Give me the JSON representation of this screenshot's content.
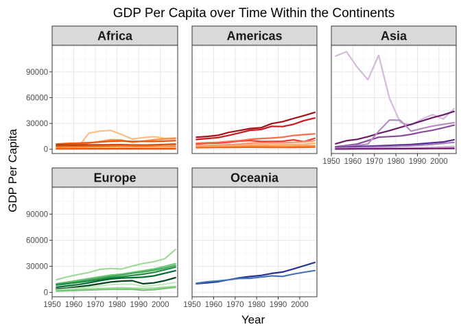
{
  "chart_data": {
    "type": "line",
    "title": "GDP Per Capita over Time Within the Continents",
    "xlabel": "Year",
    "ylabel": "GDP Per Capita",
    "xlim": [
      1950,
      2008
    ],
    "ylim": [
      -5000,
      121000
    ],
    "x_ticks": [
      1950,
      1960,
      1970,
      1980,
      1990,
      2000
    ],
    "y_ticks": [
      0,
      30000,
      60000,
      90000
    ],
    "x_tick_labels": [
      "1950",
      "1960",
      "1970",
      "1980",
      "1990",
      "2000"
    ],
    "y_tick_labels": [
      "0",
      "30000",
      "60000",
      "90000"
    ],
    "grid": true,
    "legend": "none",
    "x": [
      1952,
      1957,
      1962,
      1967,
      1972,
      1977,
      1982,
      1987,
      1992,
      1997,
      2002,
      2007
    ],
    "panels": [
      {
        "name": "Africa",
        "colors": [
          "#fdbe85",
          "#fd8d3c",
          "#e6550d",
          "#a63603",
          "#f16913",
          "#d94801"
        ],
        "series": [
          {
            "values": [
              2449,
              3014,
              2551,
              18772,
              21011,
              21951,
              17364,
              11864,
              13522,
              14723,
              12522,
              13206
            ]
          },
          {
            "values": [
              4725,
              5487,
              5768,
              7114,
              9000,
              11000,
              10800,
              8000,
              9500,
              11000,
              12000,
              12570
            ]
          },
          {
            "values": [
              6000,
              6800,
              7100,
              7600,
              8300,
              9200,
              9600,
              9000,
              9100,
              9000,
              9500,
              10000
            ]
          },
          {
            "values": [
              4700,
              4800,
              4900,
              5000,
              5100,
              5200,
              5300,
              5000,
              4900,
              5100,
              5500,
              6000
            ]
          },
          {
            "values": [
              3000,
              3200,
              3400,
              3700,
              4000,
              4300,
              4400,
              4300,
              4200,
              4400,
              4800,
              5200
            ]
          },
          {
            "values": [
              2000,
              2100,
              2200,
              2300,
              2500,
              2600,
              2600,
              2500,
              2400,
              2500,
              2700,
              3000
            ]
          },
          {
            "values": [
              1500,
              1600,
              1700,
              1800,
              2000,
              2100,
              2200,
              2100,
              2000,
              2100,
              2300,
              2500
            ]
          },
          {
            "values": [
              800,
              850,
              900,
              950,
              1000,
              1050,
              1050,
              1000,
              950,
              950,
              1000,
              1100
            ]
          },
          {
            "values": [
              400,
              420,
              450,
              480,
              500,
              520,
              500,
              480,
              450,
              430,
              440,
              470
            ]
          }
        ]
      },
      {
        "name": "Americas",
        "colors": [
          "#a50f15",
          "#cb181d",
          "#ef3b2c",
          "#fb6a4a",
          "#fc9272",
          "#fdae6b",
          "#fd8d3c",
          "#f16913"
        ],
        "series": [
          {
            "values": [
              13990,
              14847,
              16173,
              19530,
              21806,
              24073,
              25010,
              29884,
              32004,
              35767,
              39097,
              42952
            ]
          },
          {
            "values": [
              11367,
              12490,
              13462,
              16077,
              18971,
              22091,
              22899,
              26627,
              26343,
              28955,
              33329,
              36319
            ]
          },
          {
            "values": [
              5911,
              6857,
              7133,
              8053,
              9443,
              10079,
              8998,
              9140,
              9308,
              10967,
              8798,
              12779
            ]
          },
          {
            "values": [
              7000,
              7500,
              8000,
              9000,
              10000,
              11500,
              12500,
              13000,
              14000,
              16000,
              17000,
              18000
            ]
          },
          {
            "values": [
              4000,
              4300,
              4800,
              5300,
              6000,
              7000,
              7500,
              7200,
              7400,
              8000,
              8500,
              10000
            ]
          },
          {
            "values": [
              3000,
              3300,
              3600,
              4000,
              4500,
              5000,
              5300,
              5000,
              5200,
              5500,
              5800,
              7000
            ]
          },
          {
            "values": [
              2000,
              2200,
              2400,
              2600,
              2900,
              3300,
              3500,
              3200,
              3300,
              3500,
              3700,
              4200
            ]
          },
          {
            "values": [
              1800,
              1900,
              2000,
              2100,
              2200,
              2300,
              2200,
              2000,
              2000,
              2100,
              2200,
              2400
            ]
          }
        ]
      },
      {
        "name": "Asia",
        "colors": [
          "#d4b9da",
          "#6a1b6a",
          "#8c4a9c",
          "#b48cc0",
          "#54278f",
          "#9e7db8",
          "#c7a8cf"
        ],
        "series": [
          {
            "values": [
              108382,
              113523,
              95458,
              80895,
              109348,
              59265,
              31354,
              28118,
              34933,
              40301,
              35110,
              47307
            ]
          },
          {
            "values": [
              6300,
              9900,
              11500,
              14600,
              18400,
              21600,
              25400,
              29000,
              32800,
              36700,
              40000,
              44000
            ]
          },
          {
            "values": [
              3000,
              4300,
              6000,
              10000,
              14000,
              14700,
              15400,
              17300,
              20000,
              22000,
              25000,
              28000
            ]
          },
          {
            "values": [
              2500,
              3400,
              4500,
              6000,
              21000,
              34000,
              33700,
              21000,
              24000,
              27000,
              29000,
              31000
            ]
          },
          {
            "values": [
              2300,
              2700,
              3100,
              3500,
              4000,
              4500,
              5000,
              5500,
              6500,
              7500,
              8500,
              11000
            ]
          },
          {
            "values": [
              1500,
              1800,
              2000,
              2400,
              2800,
              3200,
              3700,
              4100,
              4800,
              5700,
              6800,
              8000
            ]
          },
          {
            "values": [
              700,
              800,
              900,
              1000,
              1100,
              1200,
              1300,
              1500,
              1800,
              2200,
              2700,
              3200
            ]
          },
          {
            "values": [
              500,
              600,
              700,
              800,
              900,
              1000,
              1100,
              1200,
              1300,
              1500,
              1700,
              2000
            ]
          },
          {
            "values": [
              300,
              350,
              400,
              450,
              500,
              550,
              600,
              650,
              700,
              800,
              900,
              1000
            ]
          }
        ]
      },
      {
        "name": "Europe",
        "colors": [
          "#a1d99b",
          "#74c476",
          "#41ab5d",
          "#238b45",
          "#006d2c",
          "#00441b",
          "#c7e9c0"
        ],
        "series": [
          {
            "values": [
              14700,
              17900,
              20500,
              22900,
              26500,
              27500,
              26800,
              30300,
              33300,
              35300,
              38600,
              49400
            ]
          },
          {
            "values": [
              10000,
              12000,
              14000,
              16000,
              18000,
              20000,
              21000,
              23000,
              25000,
              27000,
              30000,
              33000
            ]
          },
          {
            "values": [
              9500,
              11000,
              12500,
              14500,
              16500,
              18500,
              20000,
              22000,
              23500,
              25500,
              28000,
              31000
            ]
          },
          {
            "values": [
              8500,
              10000,
              11500,
              13000,
              15000,
              17000,
              18000,
              19500,
              21000,
              23000,
              26000,
              29000
            ]
          },
          {
            "values": [
              6000,
              7500,
              9000,
              11000,
              13500,
              15500,
              16500,
              17000,
              17500,
              19000,
              22000,
              25000
            ]
          },
          {
            "values": [
              4000,
              5000,
              6500,
              8000,
              10000,
              12000,
              13000,
              13500,
              10000,
              11000,
              13500,
              17000
            ]
          },
          {
            "values": [
              3000,
              4000,
              5000,
              6000,
              7500,
              9000,
              9500,
              9500,
              7000,
              8000,
              9500,
              11500
            ]
          },
          {
            "values": [
              2500,
              3000,
              3500,
              4000,
              4500,
              5000,
              5500,
              5000,
              4500,
              5000,
              6000,
              7000
            ]
          },
          {
            "values": [
              1600,
              1900,
              2300,
              2800,
              3300,
              3500,
              3600,
              3700,
              2500,
              3200,
              4600,
              5900
            ]
          }
        ]
      },
      {
        "name": "Oceania",
        "colors": [
          "#253494",
          "#4575b4"
        ],
        "series": [
          {
            "values": [
              10040,
              10950,
              12217,
              14526,
              16789,
              18334,
              19477,
              21889,
              23425,
              26998,
              30688,
              34435
            ]
          },
          {
            "values": [
              10557,
              12247,
              13176,
              14464,
              16046,
              16234,
              17632,
              19007,
              18363,
              21050,
              23190,
              25185
            ]
          }
        ]
      }
    ]
  }
}
